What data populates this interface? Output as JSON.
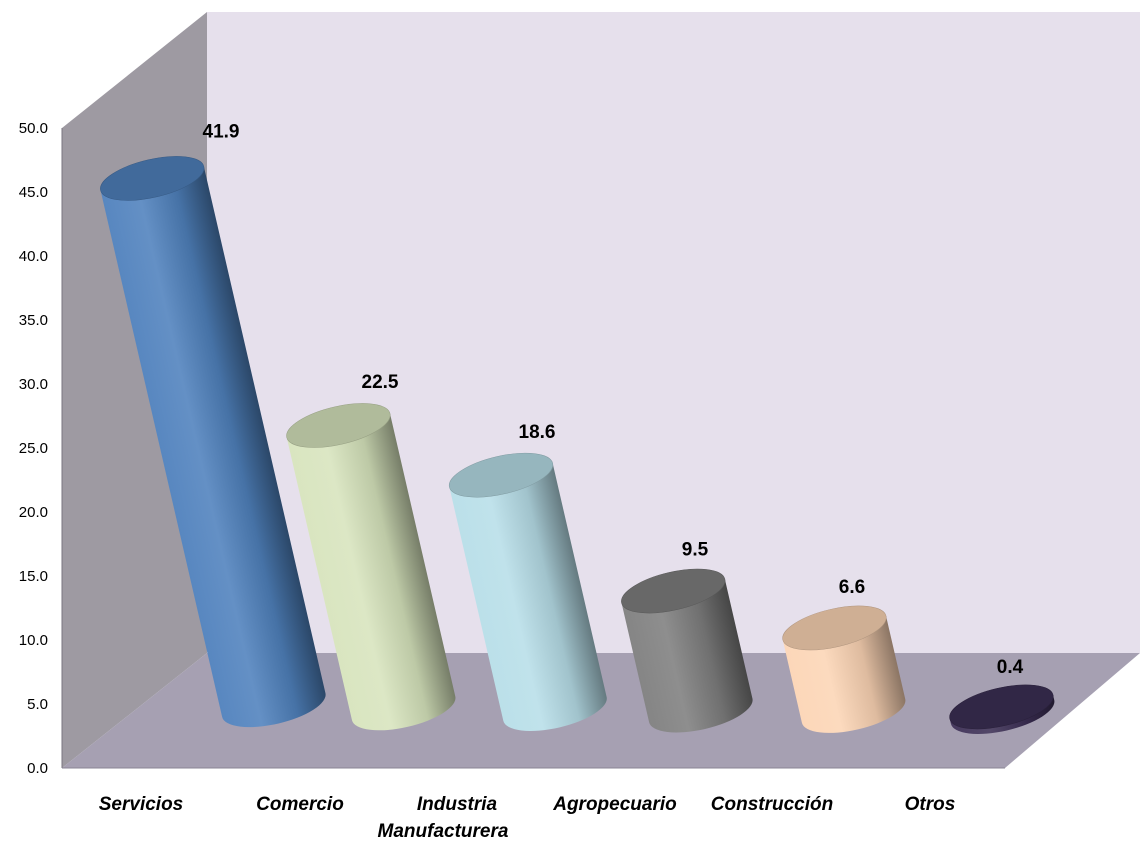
{
  "chart_data": {
    "type": "bar",
    "style": "3d-cylinder",
    "title": "",
    "xlabel": "",
    "ylabel": "",
    "categories": [
      "Servicios",
      "Comercio",
      "Industria\nManufacturera",
      "Agropecuario",
      "Construcción",
      "Otros"
    ],
    "values": [
      41.9,
      22.5,
      18.6,
      9.5,
      6.6,
      0.4
    ],
    "data_labels": [
      "41.9",
      "22.5",
      "18.6",
      "9.5",
      "6.6",
      "0.4"
    ],
    "ylim": [
      0,
      50
    ],
    "yticks": [
      "0.0",
      "5.0",
      "10.0",
      "15.0",
      "20.0",
      "25.0",
      "30.0",
      "35.0",
      "40.0",
      "45.0",
      "50.0"
    ],
    "grid": false,
    "legend": "none",
    "colors": {
      "bars": [
        "#4f81bd",
        "#d7e4bd",
        "#b7dee8",
        "#7f7f7f",
        "#fcd5b5",
        "#3c2f55"
      ],
      "back_wall": "#e6e0ec",
      "side_wall": "#9e9aa2",
      "floor": "#a6a0b2"
    }
  }
}
